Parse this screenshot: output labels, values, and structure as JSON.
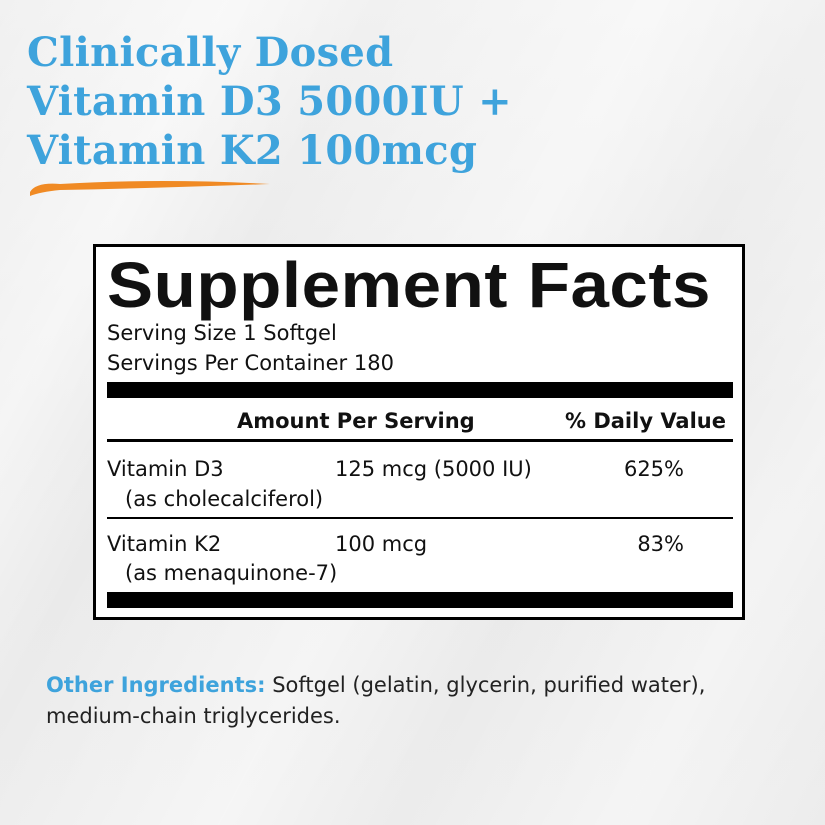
{
  "headline": [
    "Clinically Dosed",
    "Vitamin D3 5000IU +",
    "Vitamin K2 100mcg"
  ],
  "facts": {
    "title": "Supplement Facts",
    "serving_size": "Serving Size  1 Softgel",
    "servings_per_container": "Servings Per Container  180",
    "columns": [
      "Amount Per Serving",
      "% Daily Value"
    ],
    "rows": [
      {
        "name": "Vitamin D3",
        "source": "(as cholecalciferol)",
        "amount": "125 mcg (5000 IU)",
        "daily_value": "625%"
      },
      {
        "name": "Vitamin K2",
        "source": "(as menaquinone-7)",
        "amount": "100 mcg",
        "daily_value": "83%"
      }
    ]
  },
  "other_ingredients": {
    "label": "Other Ingredients:",
    "text": "Softgel (gelatin, glycerin, purified water), medium-chain triglycerides."
  }
}
